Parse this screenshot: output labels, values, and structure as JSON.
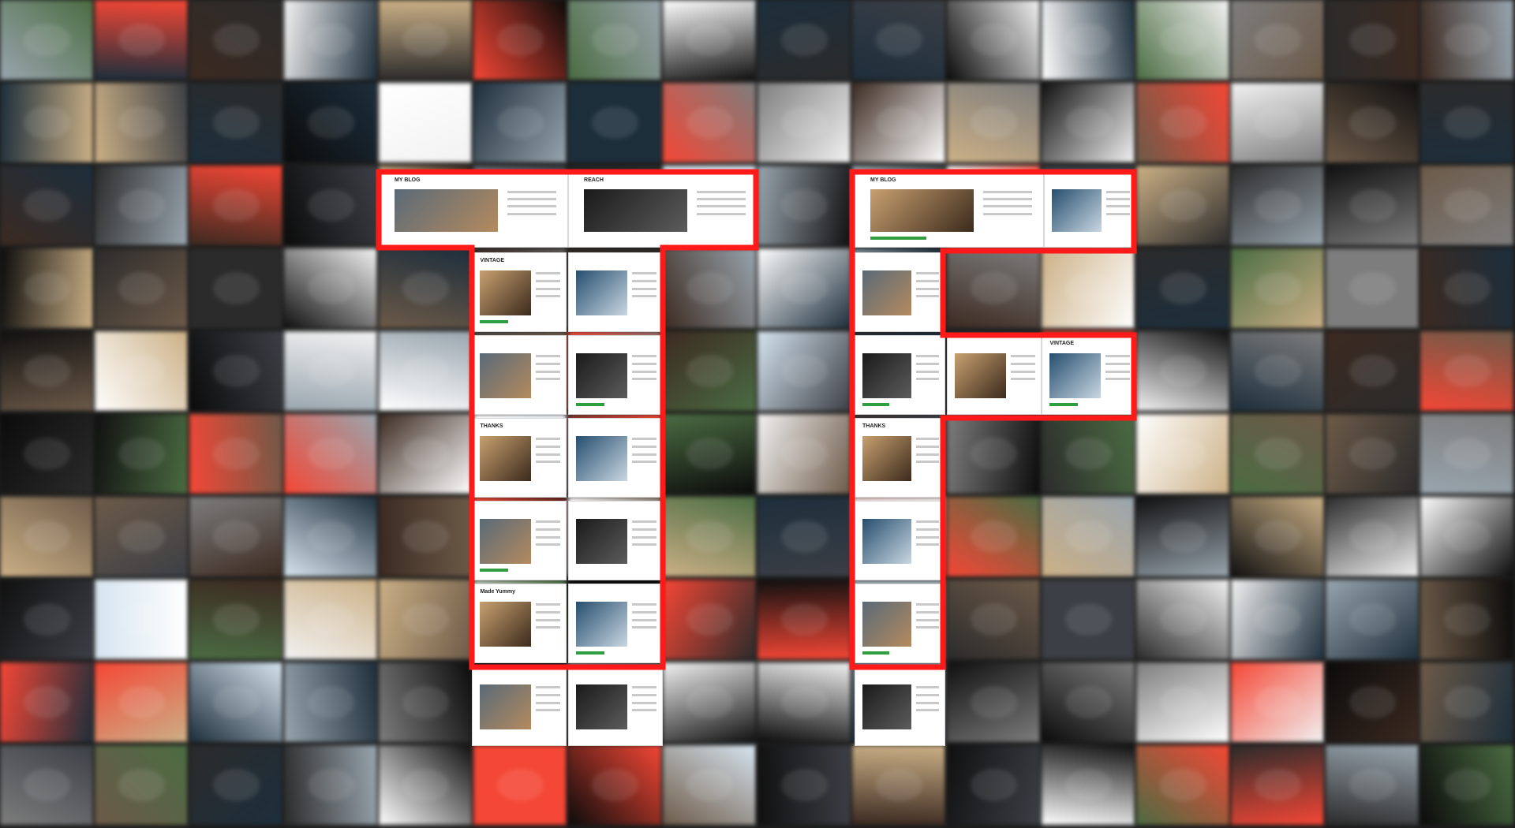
{
  "outline_color": "#ff1a1a",
  "background_tile_colors": [
    "#101010",
    "#2b2b2b",
    "#3c3f45",
    "#e84a3a",
    "#f2f2f2",
    "#6b5a4a",
    "#1e2e3a",
    "#9aa5ad",
    "#4d6b45",
    "#c9b08a",
    "#0b0b0b",
    "#7d7d7d",
    "#d7e4ee",
    "#3a2a22",
    "#ffffff"
  ],
  "letters": [
    {
      "name": "first-letter-t",
      "shape": "T"
    },
    {
      "name": "second-letter-f",
      "shape": "F"
    }
  ],
  "tile_text": {
    "reach_label": "REACH",
    "thanks_label": "THANKS",
    "vintage_label": "VINTAGE",
    "made_label": "Made Yummy",
    "title_short": "MY BLOG"
  }
}
